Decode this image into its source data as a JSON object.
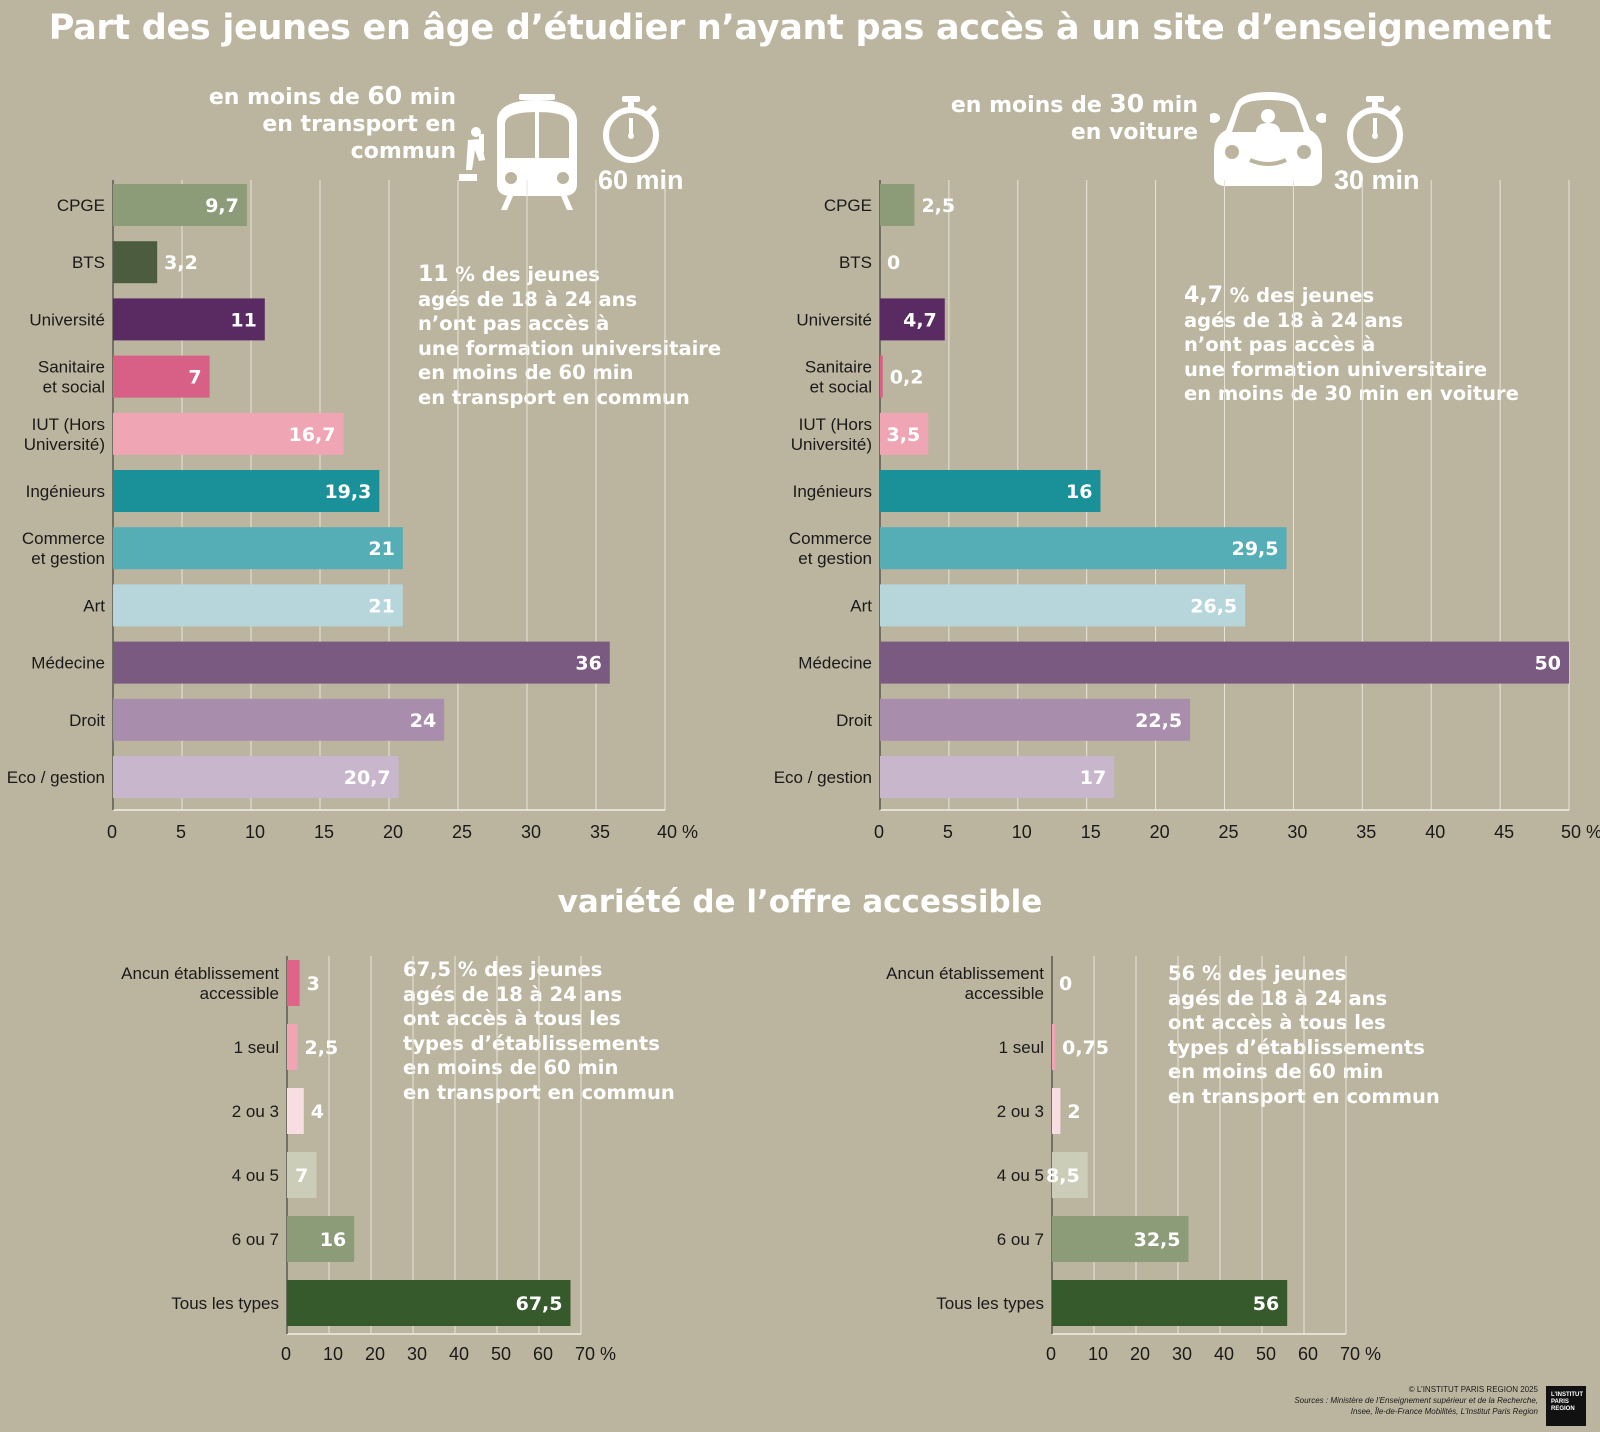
{
  "title": "Part des jeunes en âge d’étudier n’ayant pas accès à un site d’enseignement",
  "subtitle": "variété de l’offre accessible",
  "transit": {
    "label_pre": "en moins de ",
    "label_num": "60",
    "label_post": " min",
    "label_line2": "en transport en commun",
    "minutes": "60 min",
    "note_num": "11",
    "note_lines": [
      "% des jeunes",
      "agés de 18 à 24 ans",
      "n’ont pas accès à",
      "une formation universitaire",
      "en moins de 60 min",
      "en transport en commun"
    ]
  },
  "car": {
    "label_pre": "en moins de ",
    "label_num": "30",
    "label_post": " min",
    "label_line2": "en voiture",
    "minutes": "30 min",
    "note_num": "4,7",
    "note_lines": [
      "% des jeunes",
      "agés de 18 à 24 ans",
      "n’ont pas accès à",
      "une formation universitaire",
      "en moins de 30 min en voiture"
    ]
  },
  "variety_left_note": {
    "note_num": "67,5",
    "note_lines": [
      "% des jeunes",
      "agés de 18 à 24 ans",
      "ont accès à tous les",
      "types d’établissements",
      "en moins de 60 min",
      "en transport en commun"
    ]
  },
  "variety_right_note": {
    "note_num": "56",
    "note_lines": [
      "% des jeunes",
      "agés de 18 à 24 ans",
      "ont accès à tous les",
      "types d’établissements",
      "en moins de 60 min",
      "en transport en commun"
    ]
  },
  "credits": {
    "copyright": "© L’INSTITUT PARIS REGION 2025",
    "sources_1": "Sources : Ministère de l’Enseignement supérieur et de la Recherche,",
    "sources_2": "Insee, Île-de-France Mobilités, L’Institut Paris Region",
    "logo_1": "L’INSTITUT",
    "logo_2": "PARIS",
    "logo_3": "REGION"
  },
  "chart_data": [
    {
      "type": "bar",
      "orientation": "horizontal",
      "categories": [
        "CPGE",
        "BTS",
        "Université",
        "Sanitaire\net social",
        "IUT (Hors\nUniversité)",
        "Ingénieurs",
        "Commerce\net gestion",
        "Art",
        "Médecine",
        "Droit",
        "Eco / gestion"
      ],
      "values": [
        9.7,
        3.2,
        11,
        7,
        16.7,
        19.3,
        21,
        21,
        36,
        24,
        20.7
      ],
      "value_labels": [
        "9,7",
        "3,2",
        "11",
        "7",
        "16,7",
        "19,3",
        "21",
        "21",
        "36",
        "24",
        "20,7"
      ],
      "colors": [
        "#8d9c78",
        "#4c5c3e",
        "#5a2a62",
        "#d85f86",
        "#f0a5b5",
        "#1a9098",
        "#55adb6",
        "#b7d6dc",
        "#7a5a80",
        "#a88eac",
        "#c8b7cc"
      ],
      "label_inside": [
        true,
        false,
        true,
        true,
        true,
        true,
        true,
        true,
        true,
        true,
        true
      ],
      "xlim": [
        0,
        40
      ],
      "xticks": [
        0,
        5,
        10,
        15,
        20,
        25,
        30,
        35,
        40
      ],
      "xtick_labels": [
        "0",
        "5",
        "10",
        "15",
        "20",
        "25",
        "30",
        "35",
        "40 %"
      ],
      "grid": true
    },
    {
      "type": "bar",
      "orientation": "horizontal",
      "categories": [
        "CPGE",
        "BTS",
        "Université",
        "Sanitaire\net social",
        "IUT (Hors\nUniversité)",
        "Ingénieurs",
        "Commerce\net gestion",
        "Art",
        "Médecine",
        "Droit",
        "Eco / gestion"
      ],
      "values": [
        2.5,
        0,
        4.7,
        0.2,
        3.5,
        16,
        29.5,
        26.5,
        50,
        22.5,
        17
      ],
      "value_labels": [
        "2,5",
        "0",
        "4,7",
        "0,2",
        "3,5",
        "16",
        "29,5",
        "26,5",
        "50",
        "22,5",
        "17"
      ],
      "colors": [
        "#8d9c78",
        "#4c5c3e",
        "#5a2a62",
        "#d85f86",
        "#f0a5b5",
        "#1a9098",
        "#55adb6",
        "#b7d6dc",
        "#7a5a80",
        "#a88eac",
        "#c8b7cc"
      ],
      "label_inside": [
        false,
        false,
        true,
        false,
        true,
        true,
        true,
        true,
        true,
        true,
        true
      ],
      "xlim": [
        0,
        50
      ],
      "xticks": [
        0,
        5,
        10,
        15,
        20,
        25,
        30,
        35,
        40,
        45,
        50
      ],
      "xtick_labels": [
        "0",
        "5",
        "10",
        "15",
        "20",
        "25",
        "30",
        "35",
        "40",
        "45",
        "50 %"
      ],
      "grid": true
    },
    {
      "type": "bar",
      "orientation": "horizontal",
      "categories": [
        "Ancun établissement\naccessible",
        "1 seul",
        "2 ou 3",
        "4 ou 5",
        "6 ou 7",
        "Tous les types"
      ],
      "values": [
        3,
        2.5,
        4,
        7,
        16,
        67.5
      ],
      "value_labels": [
        "3",
        "2,5",
        "4",
        "7",
        "16",
        "67,5"
      ],
      "colors": [
        "#e0648a",
        "#f0a5b5",
        "#f8dde2",
        "#cccdb8",
        "#8d9c78",
        "#365a2c"
      ],
      "label_inside": [
        false,
        false,
        false,
        true,
        true,
        true
      ],
      "xlim": [
        0,
        70
      ],
      "xticks": [
        0,
        10,
        20,
        30,
        40,
        50,
        60,
        70
      ],
      "xtick_labels": [
        "0",
        "10",
        "20",
        "30",
        "40",
        "50",
        "60",
        "70 %"
      ],
      "grid": true
    },
    {
      "type": "bar",
      "orientation": "horizontal",
      "categories": [
        "Ancun établissement\naccessible",
        "1 seul",
        "2 ou 3",
        "4 ou 5",
        "6 ou 7",
        "Tous les types"
      ],
      "values": [
        0,
        0.75,
        2,
        8.5,
        32.5,
        56
      ],
      "value_labels": [
        "0",
        "0,75",
        "2",
        "8,5",
        "32,5",
        "56"
      ],
      "colors": [
        "#e0648a",
        "#f0a5b5",
        "#f8dde2",
        "#cccdb8",
        "#8d9c78",
        "#365a2c"
      ],
      "label_inside": [
        false,
        false,
        false,
        true,
        true,
        true
      ],
      "xlim": [
        0,
        70
      ],
      "xticks": [
        0,
        10,
        20,
        30,
        40,
        50,
        60,
        70
      ],
      "xtick_labels": [
        "0",
        "10",
        "20",
        "30",
        "40",
        "50",
        "60",
        "70 %"
      ],
      "grid": true
    }
  ]
}
